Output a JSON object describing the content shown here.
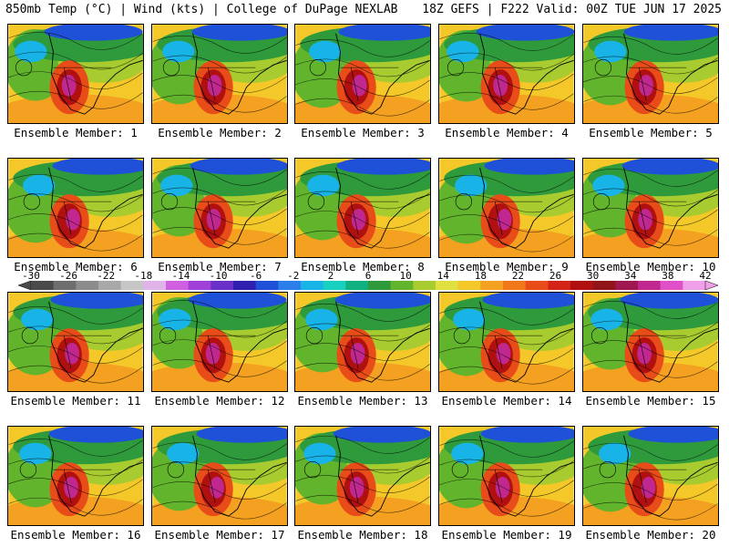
{
  "header": {
    "title": "850mb Temp (°C) | Wind (kts) | College of DuPage NEXLAB",
    "valid": "18Z GEFS | F222 Valid: 00Z TUE JUN 17 2025"
  },
  "members": [
    "Ensemble Member: 1",
    "Ensemble Member: 2",
    "Ensemble Member: 3",
    "Ensemble Member: 4",
    "Ensemble Member: 5",
    "Ensemble Member: 6",
    "Ensemble Member: 7",
    "Ensemble Member: 8",
    "Ensemble Member: 9",
    "Ensemble Member: 10",
    "Ensemble Member: 11",
    "Ensemble Member: 12",
    "Ensemble Member: 13",
    "Ensemble Member: 14",
    "Ensemble Member: 15",
    "Ensemble Member: 16",
    "Ensemble Member: 17",
    "Ensemble Member: 18",
    "Ensemble Member: 19",
    "Ensemble Member: 20"
  ],
  "colorbar": {
    "ticks": [
      "-30",
      "-26",
      "-22",
      "-18",
      "-14",
      "-10",
      "-6",
      "-2",
      "2",
      "6",
      "10",
      "14",
      "18",
      "22",
      "26",
      "30",
      "34",
      "38",
      "42"
    ],
    "colors": [
      "#4a4a4a",
      "#6e6e6e",
      "#8c8c8c",
      "#a8a8a8",
      "#c6c6c6",
      "#e0b4e8",
      "#d060e0",
      "#a040d8",
      "#6a30c8",
      "#3020b0",
      "#1e50d8",
      "#2c7fe8",
      "#18b4e8",
      "#18d0c0",
      "#10b080",
      "#2e9a3c",
      "#62b42c",
      "#a8cc30",
      "#e0e040",
      "#f4c828",
      "#f4a020",
      "#f07818",
      "#e84c18",
      "#d42418",
      "#b01010",
      "#901418",
      "#a01850",
      "#c02890",
      "#e050c8",
      "#f0a0e8"
    ]
  }
}
